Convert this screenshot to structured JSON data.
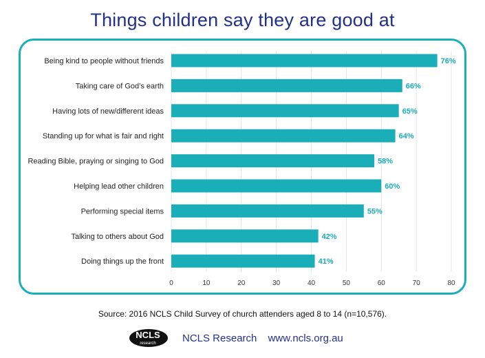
{
  "title": "Things children say they are good at",
  "source": "Source: 2016 NCLS Child Survey of church attenders aged 8 to 14 (n=10,576).",
  "footer": {
    "logo_text": "NCLS",
    "logo_subtext": "research",
    "org_name": "NCLS Research",
    "website": "www.ncls.org.au"
  },
  "colors": {
    "bar": "#1aaeb8",
    "title": "#23318a",
    "frame": "#1aaeb8",
    "value_label": "#1aaeb8"
  },
  "chart_data": {
    "type": "bar",
    "orientation": "horizontal",
    "categories": [
      "Being kind to people without friends",
      "Taking care of God’s earth",
      "Having lots of new/different ideas",
      "Standing up for what is fair and right",
      "Reading Bible, praying or singing to God",
      "Helping lead other children",
      "Performing special items",
      "Talking to others about God",
      "Doing things up the front"
    ],
    "values": [
      76,
      66,
      65,
      64,
      58,
      60,
      55,
      42,
      41
    ],
    "value_labels": [
      "76%",
      "66%",
      "65%",
      "64%",
      "58%",
      "60%",
      "55%",
      "42%",
      "41%"
    ],
    "xlim": [
      0,
      80
    ],
    "xticks": [
      0,
      10,
      20,
      30,
      40,
      50,
      60,
      70,
      80
    ],
    "grid": true,
    "legend": "none"
  }
}
